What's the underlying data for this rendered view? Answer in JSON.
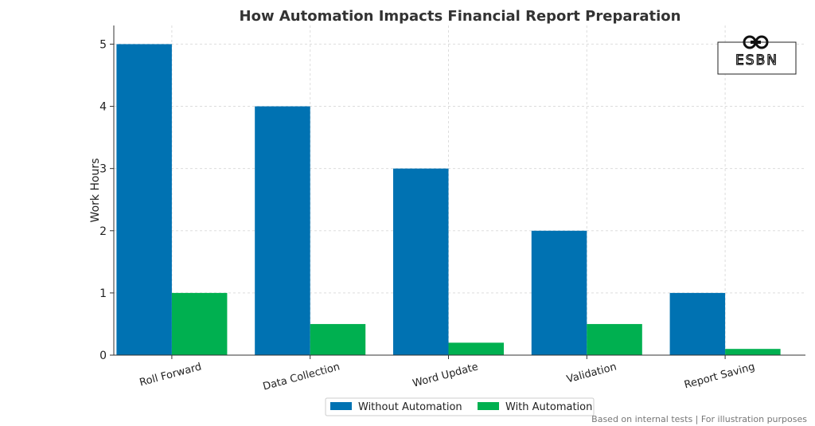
{
  "chart_data": {
    "type": "bar",
    "title": "How Automation Impacts Financial Report Preparation",
    "xlabel": "",
    "ylabel": "Work Hours",
    "categories": [
      "Roll Forward",
      "Data Collection",
      "Word Update",
      "Validation",
      "Report Saving"
    ],
    "series": [
      {
        "name": "Without Automation",
        "values": [
          5,
          4,
          3,
          2,
          1
        ],
        "color": "#0072B2"
      },
      {
        "name": "With Automation",
        "values": [
          1,
          0.5,
          0.2,
          0.5,
          0.1
        ],
        "color": "#00B050"
      }
    ],
    "ylim": [
      0,
      5.3
    ],
    "yticks": [
      0,
      1,
      2,
      3,
      4,
      5
    ],
    "grid": true,
    "legend": "bottom-center"
  },
  "logo": {
    "text": "ESBN",
    "icon": "link-icon"
  },
  "footnote": "Based on internal tests | For illustration purposes"
}
